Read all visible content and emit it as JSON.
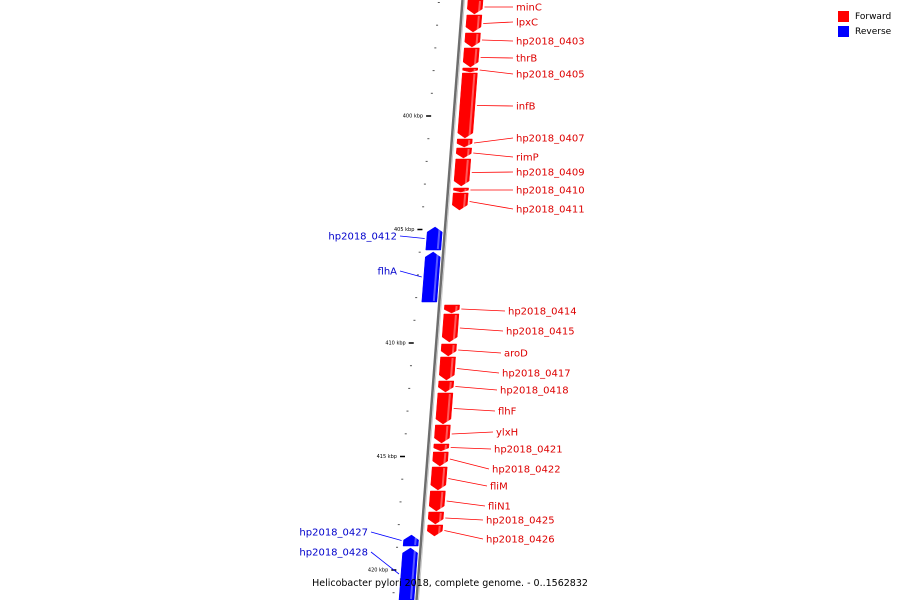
{
  "legend": {
    "forward_label": "Forward",
    "reverse_label": "Reverse",
    "forward_color": "#ff0000",
    "reverse_color": "#0000ff"
  },
  "caption": "Helicobacter pylori 2018, complete genome. - 0..1562832",
  "ticks": [
    {
      "kbp": 400,
      "label": "400 kbp"
    },
    {
      "kbp": 405,
      "label": "405 kbp"
    },
    {
      "kbp": 410,
      "label": "410 kbp"
    },
    {
      "kbp": 415,
      "label": "415 kbp"
    },
    {
      "kbp": 420,
      "label": "420 kbp"
    }
  ],
  "genes": [
    {
      "name": "minC",
      "strand": "forward"
    },
    {
      "name": "lpxC",
      "strand": "forward"
    },
    {
      "name": "hp2018_0403",
      "strand": "forward"
    },
    {
      "name": "thrB",
      "strand": "forward"
    },
    {
      "name": "hp2018_0405",
      "strand": "forward"
    },
    {
      "name": "infB",
      "strand": "forward"
    },
    {
      "name": "hp2018_0407",
      "strand": "forward"
    },
    {
      "name": "rimP",
      "strand": "forward"
    },
    {
      "name": "hp2018_0409",
      "strand": "forward"
    },
    {
      "name": "hp2018_0410",
      "strand": "forward"
    },
    {
      "name": "hp2018_0411",
      "strand": "forward"
    },
    {
      "name": "hp2018_0412",
      "strand": "reverse"
    },
    {
      "name": "flhA",
      "strand": "reverse"
    },
    {
      "name": "hp2018_0414",
      "strand": "forward"
    },
    {
      "name": "hp2018_0415",
      "strand": "forward"
    },
    {
      "name": "aroD",
      "strand": "forward"
    },
    {
      "name": "hp2018_0417",
      "strand": "forward"
    },
    {
      "name": "hp2018_0418",
      "strand": "forward"
    },
    {
      "name": "flhF",
      "strand": "forward"
    },
    {
      "name": "ylxH",
      "strand": "forward"
    },
    {
      "name": "hp2018_0421",
      "strand": "forward"
    },
    {
      "name": "hp2018_0422",
      "strand": "forward"
    },
    {
      "name": "fliM",
      "strand": "forward"
    },
    {
      "name": "fliN1",
      "strand": "forward"
    },
    {
      "name": "hp2018_0425",
      "strand": "forward"
    },
    {
      "name": "hp2018_0426",
      "strand": "forward"
    },
    {
      "name": "hp2018_0427",
      "strand": "reverse"
    },
    {
      "name": "hp2018_0428",
      "strand": "reverse"
    }
  ]
}
